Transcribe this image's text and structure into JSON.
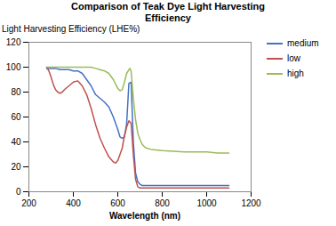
{
  "chart_data": {
    "type": "line",
    "title": "Comparison of Teak Dye Light Harvesting\nEfficiency",
    "xlabel": "Wavelength (nm)",
    "ylabel": "Light Harvesting Efficiency (LHE%)",
    "xlim": [
      200,
      1200
    ],
    "ylim": [
      0,
      120
    ],
    "xticks": [
      200,
      400,
      600,
      800,
      1000,
      1200
    ],
    "yticks": [
      0,
      20,
      40,
      60,
      80,
      100,
      120
    ],
    "grid": false,
    "legend": "right",
    "series": [
      {
        "name": "medium",
        "color": "#4472C4",
        "x": [
          280,
          300,
          320,
          340,
          360,
          380,
          400,
          420,
          440,
          460,
          480,
          500,
          520,
          540,
          560,
          580,
          600,
          610,
          620,
          630,
          640,
          650,
          660,
          670,
          680,
          690,
          700,
          710,
          730,
          800,
          900,
          1000,
          1100
        ],
        "values": [
          99,
          99,
          99,
          98,
          98,
          98,
          97,
          97,
          95,
          90,
          85,
          78,
          75,
          72,
          68,
          60,
          50,
          44,
          43,
          44,
          55,
          87,
          88,
          40,
          15,
          8,
          6,
          5,
          5,
          5,
          5,
          5,
          5
        ]
      },
      {
        "name": "low",
        "color": "#C0504D",
        "x": [
          280,
          290,
          300,
          310,
          320,
          330,
          340,
          350,
          360,
          380,
          400,
          420,
          440,
          460,
          480,
          500,
          520,
          540,
          560,
          580,
          590,
          600,
          620,
          630,
          640,
          650,
          660,
          670,
          680,
          690,
          700,
          720,
          800,
          900,
          1000,
          1100
        ],
        "values": [
          100,
          97,
          92,
          86,
          82,
          80,
          79,
          80,
          82,
          85,
          88,
          89,
          85,
          78,
          67,
          54,
          43,
          35,
          28,
          24,
          23,
          25,
          35,
          45,
          52,
          57,
          55,
          30,
          10,
          4,
          3,
          3,
          3,
          3,
          3,
          3
        ]
      },
      {
        "name": "high",
        "color": "#9BBB59",
        "x": [
          280,
          300,
          320,
          340,
          360,
          380,
          400,
          420,
          440,
          460,
          480,
          500,
          520,
          540,
          560,
          580,
          600,
          610,
          620,
          630,
          640,
          650,
          655,
          660,
          670,
          680,
          690,
          700,
          710,
          720,
          730,
          750,
          800,
          900,
          1000,
          1050,
          1100
        ],
        "values": [
          100,
          100,
          100,
          100,
          100,
          100,
          100,
          100,
          100,
          100,
          100,
          99,
          98,
          97,
          95,
          90,
          83,
          81,
          82,
          88,
          95,
          98,
          99,
          97,
          75,
          58,
          47,
          42,
          38,
          36,
          35,
          34,
          33,
          32,
          32,
          31,
          31
        ]
      }
    ]
  }
}
